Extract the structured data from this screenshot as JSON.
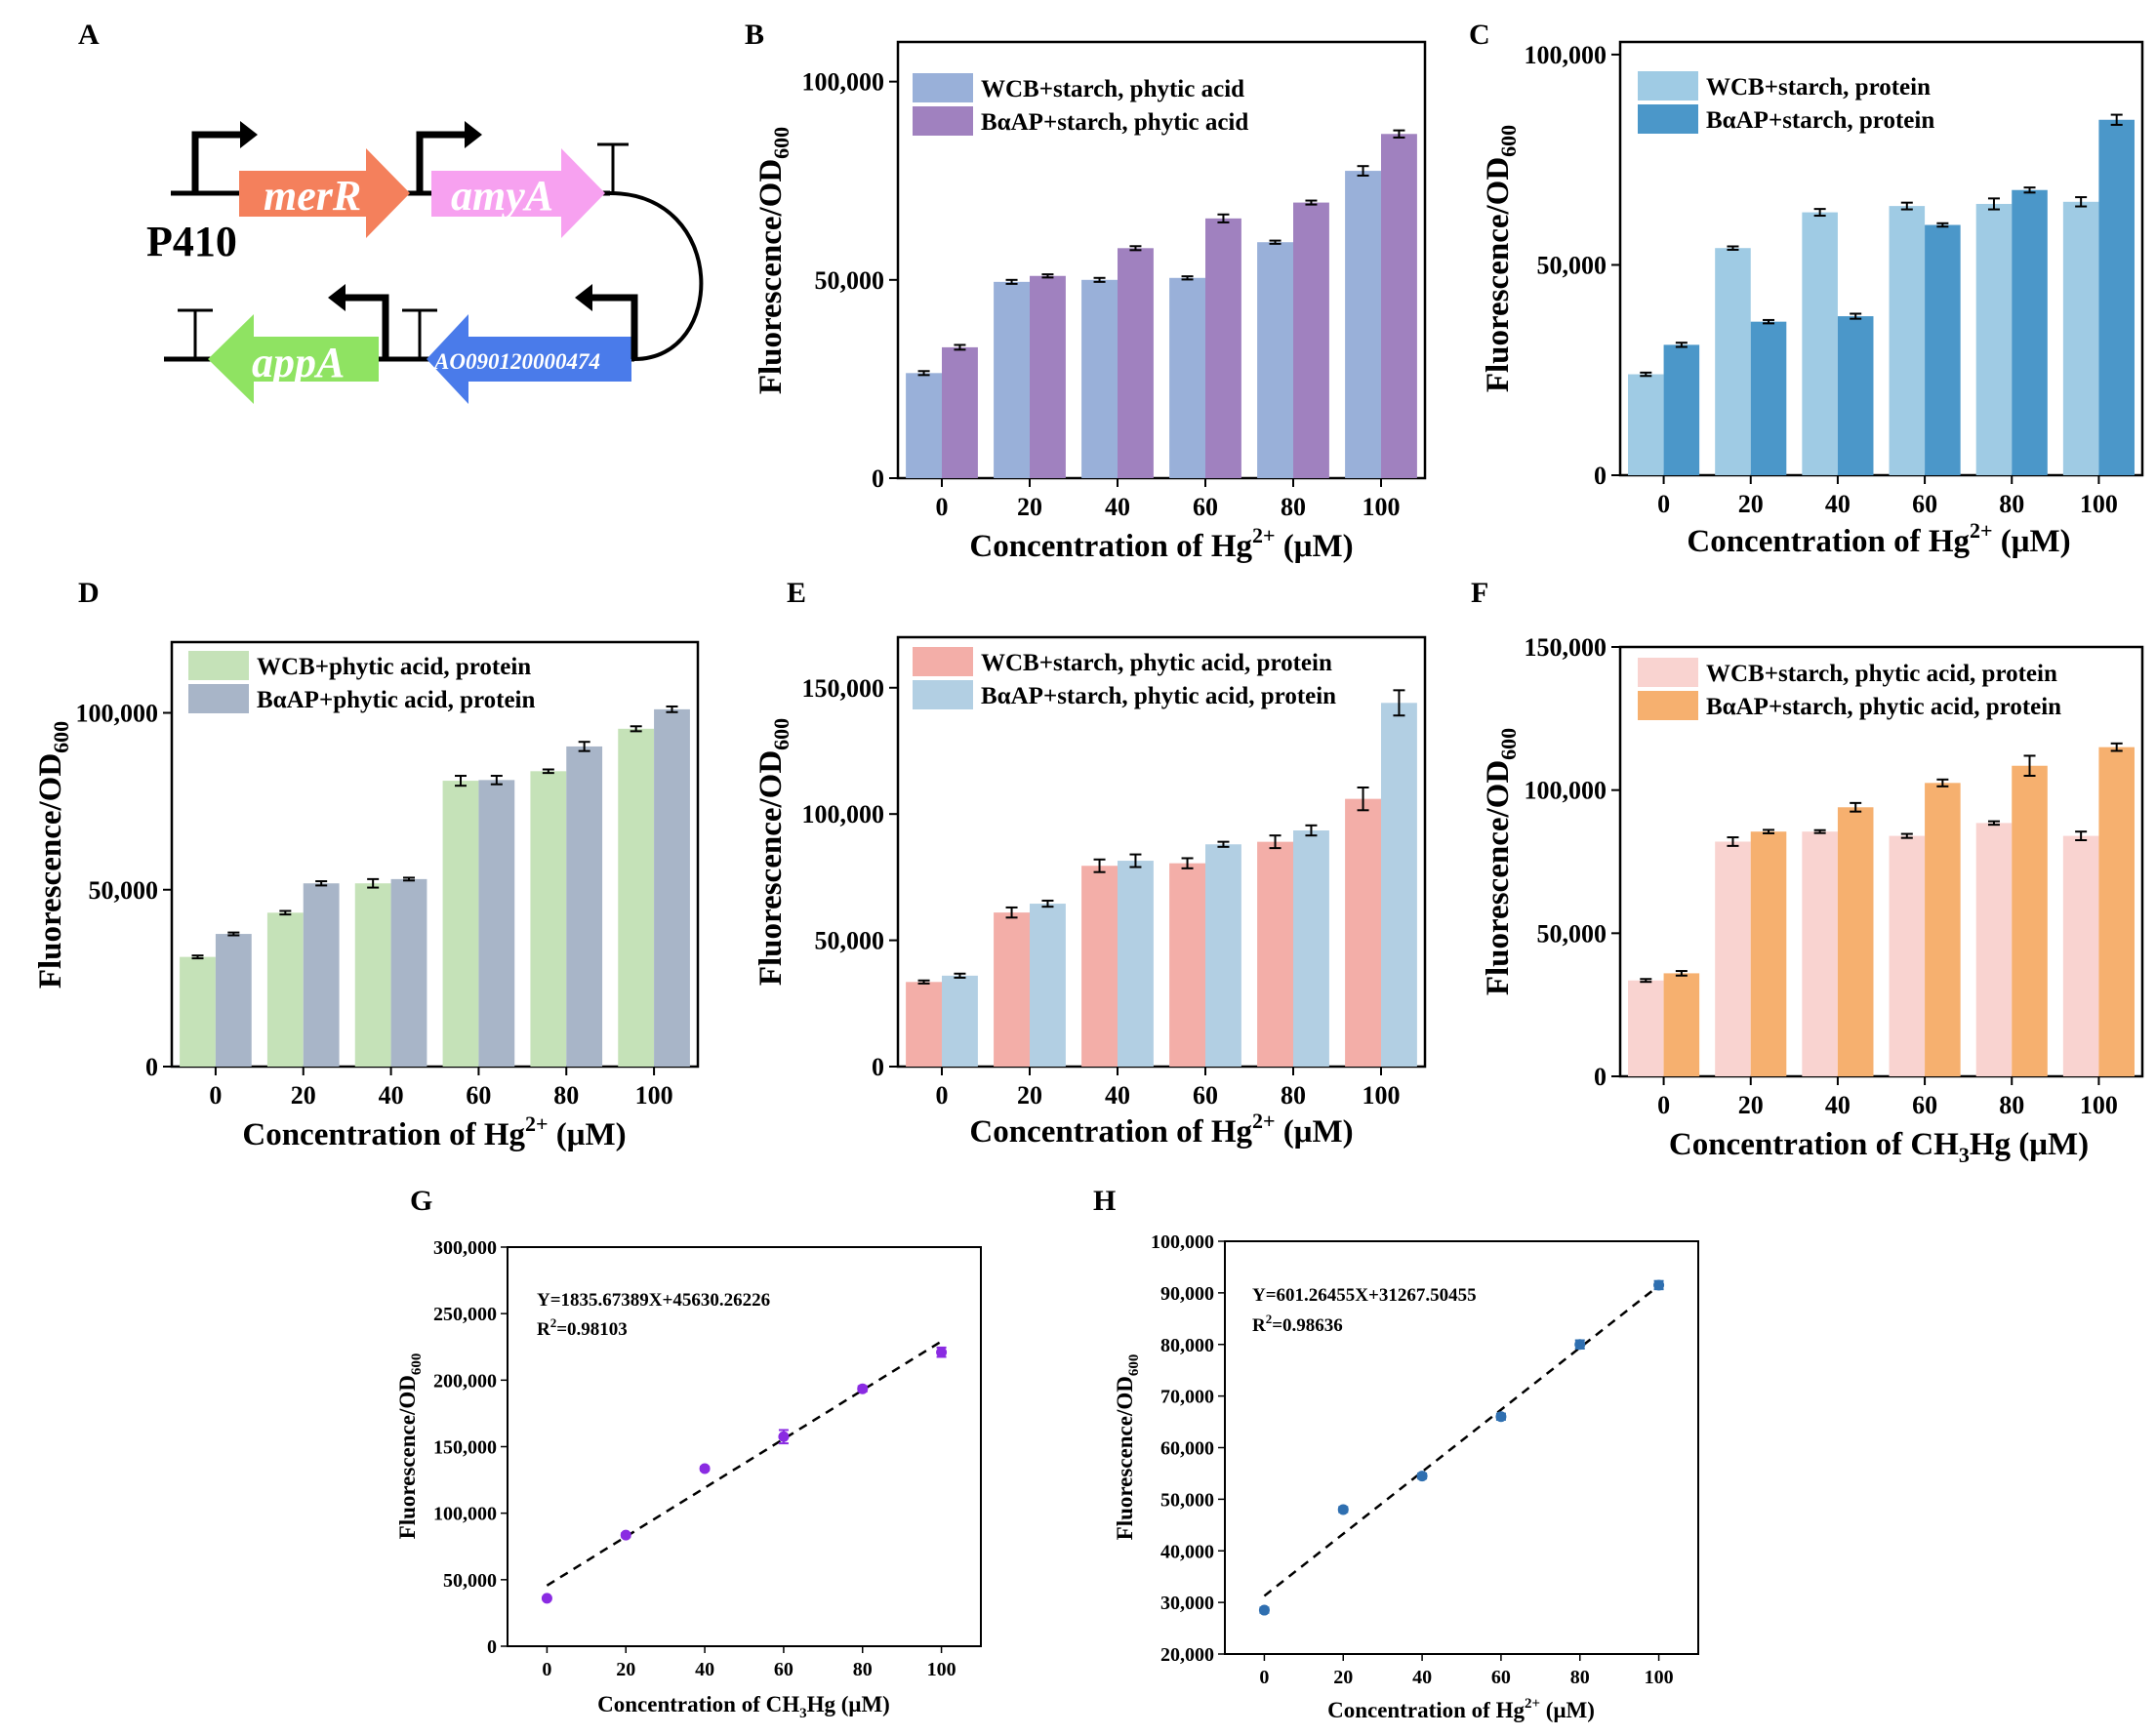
{
  "panel_labels": [
    "A",
    "B",
    "C",
    "D",
    "E",
    "F",
    "G",
    "H"
  ],
  "diagram": {
    "promoter": "P410",
    "genes": [
      "merR",
      "amyA",
      "appA",
      "AO090120000474"
    ],
    "colors": {
      "merR": "#f4805c",
      "amyA": "#f7a1f0",
      "appA": "#8fe362",
      "AO": "#4a7bea"
    }
  },
  "chart_data": [
    {
      "panel": "B",
      "type": "bar",
      "categories": [
        "0",
        "20",
        "40",
        "60",
        "80",
        "100"
      ],
      "xlabel_pre": "Concentration of Hg",
      "xlabel_sup": "2+",
      "xlabel_post": " (μM)",
      "ylabel_pre": "Fluorescence/OD",
      "ylabel_sub": "600",
      "ylim": [
        0,
        110000
      ],
      "yticks": [
        {
          "v": 0,
          "label": "0"
        },
        {
          "v": 50000,
          "label": "50,000"
        },
        {
          "v": 100000,
          "label": "100,000"
        }
      ],
      "series": [
        {
          "name": "WCB+starch, phytic acid",
          "color": "#99b0d9",
          "values": [
            26500,
            49500,
            50000,
            50500,
            59500,
            77500
          ],
          "errors": [
            500,
            500,
            500,
            400,
            400,
            1200
          ]
        },
        {
          "name": "BαAP+starch, phytic acid",
          "color": "#a081bf",
          "values": [
            33000,
            51000,
            58000,
            65500,
            69500,
            86800
          ],
          "errors": [
            600,
            400,
            500,
            1000,
            500,
            900
          ]
        }
      ]
    },
    {
      "panel": "C",
      "type": "bar",
      "categories": [
        "0",
        "20",
        "40",
        "60",
        "80",
        "100"
      ],
      "xlabel_pre": "Concentration of Hg",
      "xlabel_sup": "2+",
      "xlabel_post": " (μM)",
      "ylabel_pre": "Fluorescence/OD",
      "ylabel_sub": "600",
      "ylim": [
        0,
        103000
      ],
      "yticks": [
        {
          "v": 0,
          "label": "0"
        },
        {
          "v": 50000,
          "label": "50,000"
        },
        {
          "v": 100000,
          "label": "100,000"
        }
      ],
      "series": [
        {
          "name": "WCB+starch, protein",
          "color": "#9fcbe4",
          "values": [
            24000,
            54000,
            62500,
            64000,
            64500,
            65000
          ],
          "errors": [
            400,
            400,
            800,
            800,
            1300,
            1100
          ]
        },
        {
          "name": "BαAP+starch, protein",
          "color": "#4b97c9",
          "values": [
            31000,
            36500,
            37800,
            59500,
            67800,
            84500
          ],
          "errors": [
            500,
            400,
            600,
            400,
            600,
            1200
          ]
        }
      ]
    },
    {
      "panel": "D",
      "type": "bar",
      "categories": [
        "0",
        "20",
        "40",
        "60",
        "80",
        "100"
      ],
      "xlabel_pre": "Concentration of Hg",
      "xlabel_sup": "2+",
      "xlabel_post": " (μM)",
      "ylabel_pre": "Fluorescence/OD",
      "ylabel_sub": "600",
      "ylim": [
        0,
        120000
      ],
      "yticks": [
        {
          "v": 0,
          "label": "0"
        },
        {
          "v": 50000,
          "label": "50,000"
        },
        {
          "v": 100000,
          "label": "100,000"
        }
      ],
      "series": [
        {
          "name": "WCB+phytic acid, protein",
          "color": "#c5e2b8",
          "values": [
            31000,
            43500,
            51800,
            80800,
            83500,
            95500
          ],
          "errors": [
            400,
            500,
            1200,
            1400,
            500,
            700
          ]
        },
        {
          "name": "BαAP+phytic acid, protein",
          "color": "#a8b5c8",
          "values": [
            37500,
            51800,
            53000,
            81000,
            90500,
            101000
          ],
          "errors": [
            400,
            600,
            400,
            1200,
            1300,
            800
          ]
        }
      ]
    },
    {
      "panel": "E",
      "type": "bar",
      "categories": [
        "0",
        "20",
        "40",
        "60",
        "80",
        "100"
      ],
      "xlabel_pre": "Concentration of Hg",
      "xlabel_sup": "2+",
      "xlabel_post": " (μM)",
      "ylabel_pre": "Fluorescence/OD",
      "ylabel_sub": "600",
      "ylim": [
        0,
        170000
      ],
      "yticks": [
        {
          "v": 0,
          "label": "0"
        },
        {
          "v": 50000,
          "label": "50,000"
        },
        {
          "v": 100000,
          "label": "100,000"
        },
        {
          "v": 150000,
          "label": "150,000"
        }
      ],
      "series": [
        {
          "name": "WCB+starch, phytic acid, protein",
          "color": "#f3aea8",
          "values": [
            33500,
            61000,
            79500,
            80500,
            89000,
            106000
          ],
          "errors": [
            600,
            2000,
            2500,
            2000,
            2500,
            4500
          ]
        },
        {
          "name": "BαAP+starch, phytic acid, protein",
          "color": "#b2cfe3",
          "values": [
            36000,
            64500,
            81500,
            88000,
            93500,
            144000
          ],
          "errors": [
            800,
            1200,
            2500,
            1000,
            2000,
            5000
          ]
        }
      ]
    },
    {
      "panel": "F",
      "type": "bar",
      "categories": [
        "0",
        "20",
        "40",
        "60",
        "80",
        "100"
      ],
      "xlabel_pre": "Concentration of CH",
      "xlabel_sub": "3",
      "xlabel_post": "Hg (μM)",
      "ylabel_pre": "Fluorescence/OD",
      "ylabel_sub": "600",
      "ylim": [
        0,
        150000
      ],
      "yticks": [
        {
          "v": 0,
          "label": "0"
        },
        {
          "v": 50000,
          "label": "50,000"
        },
        {
          "v": 100000,
          "label": "100,000"
        },
        {
          "v": 150000,
          "label": "150,000"
        }
      ],
      "series": [
        {
          "name": "WCB+starch, phytic acid, protein",
          "color": "#f9d3d0",
          "values": [
            33500,
            82000,
            85500,
            84000,
            88500,
            84000
          ],
          "errors": [
            500,
            1500,
            500,
            700,
            600,
            1500
          ]
        },
        {
          "name": "BαAP+starch, phytic acid, protein",
          "color": "#f6b06f",
          "values": [
            36000,
            85500,
            94000,
            102500,
            108500,
            115000
          ],
          "errors": [
            800,
            600,
            1500,
            1200,
            3500,
            1300
          ]
        }
      ]
    },
    {
      "panel": "G",
      "type": "scatter",
      "x": [
        0,
        20,
        40,
        60,
        80,
        100
      ],
      "y": [
        36000,
        83500,
        133500,
        157500,
        193500,
        221000
      ],
      "errors": [
        1000,
        1500,
        1500,
        5000,
        2000,
        3500
      ],
      "marker_color": "#8a2be2",
      "fit": {
        "slope": 1835.67389,
        "intercept": 45630.26226
      },
      "equation": "Y=1835.67389X+45630.26226",
      "r2_pre": "R",
      "r2_sup": "2",
      "r2_post": "=0.98103",
      "xlim": [
        -10,
        110
      ],
      "ylim": [
        0,
        300000
      ],
      "xticks": [
        0,
        20,
        40,
        60,
        80,
        100
      ],
      "yticks": [
        {
          "v": 0,
          "label": "0"
        },
        {
          "v": 50000,
          "label": "50,000"
        },
        {
          "v": 100000,
          "label": "100,000"
        },
        {
          "v": 150000,
          "label": "150,000"
        },
        {
          "v": 200000,
          "label": "200,000"
        },
        {
          "v": 250000,
          "label": "250,000"
        },
        {
          "v": 300000,
          "label": "300,000"
        }
      ],
      "xlabel_pre": "Concentration of CH",
      "xlabel_sub": "3",
      "xlabel_post": "Hg (μM)",
      "ylabel_pre": "Fluorescence/OD",
      "ylabel_sub": "600"
    },
    {
      "panel": "H",
      "type": "scatter",
      "x": [
        0,
        20,
        40,
        60,
        80,
        100
      ],
      "y": [
        28500,
        48000,
        54500,
        66000,
        80000,
        91500
      ],
      "errors": [
        500,
        500,
        500,
        600,
        800,
        800
      ],
      "marker_color": "#2f6fb0",
      "fit": {
        "slope": 601.26455,
        "intercept": 31267.50455
      },
      "equation": "Y=601.26455X+31267.50455",
      "r2_pre": "R",
      "r2_sup": "2",
      "r2_post": "=0.98636",
      "xlim": [
        -10,
        110
      ],
      "ylim": [
        20000,
        100000
      ],
      "xticks": [
        0,
        20,
        40,
        60,
        80,
        100
      ],
      "yticks": [
        {
          "v": 20000,
          "label": "20,000"
        },
        {
          "v": 30000,
          "label": "30,000"
        },
        {
          "v": 40000,
          "label": "40,000"
        },
        {
          "v": 50000,
          "label": "50,000"
        },
        {
          "v": 60000,
          "label": "60,000"
        },
        {
          "v": 70000,
          "label": "70,000"
        },
        {
          "v": 80000,
          "label": "80,000"
        },
        {
          "v": 90000,
          "label": "90,000"
        },
        {
          "v": 100000,
          "label": "100,000"
        }
      ],
      "xlabel_pre": "Concentration of Hg",
      "xlabel_sup": "2+",
      "xlabel_post": " (μM)",
      "ylabel_pre": "Fluorescence/OD",
      "ylabel_sub": "600"
    }
  ]
}
